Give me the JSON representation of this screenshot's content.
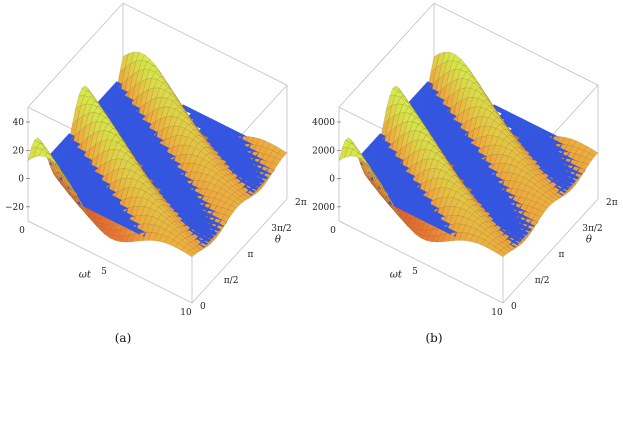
{
  "chart_data": [
    {
      "type": "surface3d",
      "panel_label": "(a)",
      "x_axis": {
        "label": "ωt",
        "range": [
          0,
          10
        ],
        "ticks": [
          "0",
          "5",
          "10"
        ]
      },
      "y_axis": {
        "label": "θ",
        "range_rad": [
          0,
          6.2832
        ],
        "ticks": [
          "0",
          "π/2",
          "π",
          "3π/2",
          "2π"
        ]
      },
      "z_axis": {
        "label": "",
        "range": [
          -30,
          40
        ],
        "ticks": [
          "40",
          "20",
          "0",
          "−20"
        ]
      },
      "colors": {
        "plane": "#3355e0",
        "surface_high": "#d2ee4c",
        "surface_mid": "#f0a53c",
        "surface_low": "#e0542a",
        "mesh": "#6a4a1a"
      }
    },
    {
      "type": "surface3d",
      "panel_label": "(b)",
      "x_axis": {
        "label": "ωt",
        "range": [
          0,
          10
        ],
        "ticks": [
          "0",
          "5",
          "10"
        ]
      },
      "y_axis": {
        "label": "θ",
        "range_rad": [
          0,
          6.2832
        ],
        "ticks": [
          "0",
          "π/2",
          "π",
          "3π/2",
          "2π"
        ]
      },
      "z_axis": {
        "label": "",
        "range": [
          -3000,
          4000
        ],
        "ticks": [
          "4000",
          "2000",
          "0",
          "−2000"
        ]
      },
      "colors": {
        "plane": "#3355e0",
        "surface_high": "#d2ee4c",
        "surface_mid": "#f0a53c",
        "surface_low": "#e0542a",
        "mesh": "#6a4a1a"
      }
    }
  ]
}
